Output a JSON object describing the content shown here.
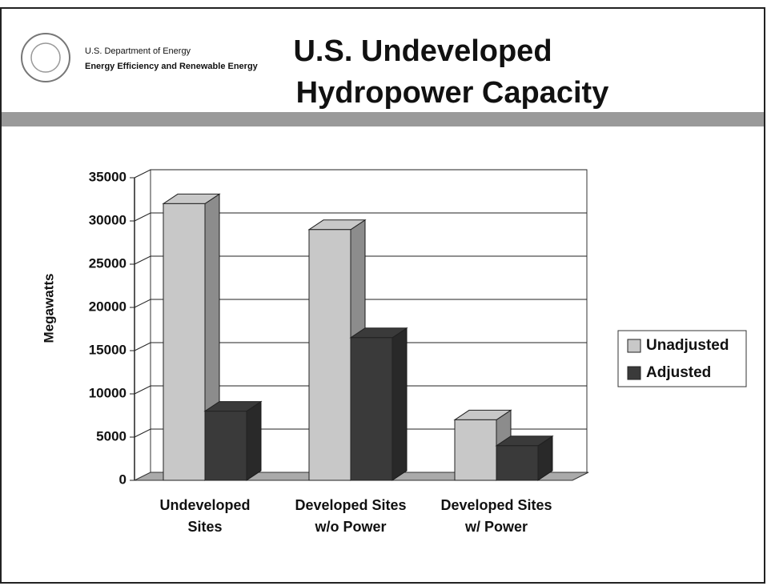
{
  "header": {
    "org": "U.S. Department of Energy",
    "division": "Energy Efficiency and Renewable Energy",
    "title_lines": [
      "U.S. Undeveloped",
      "Hydropower Capacity"
    ]
  },
  "chart_data": {
    "type": "bar3d",
    "y_label": "Megawatts",
    "categories": [
      [
        "Undeveloped",
        "Sites"
      ],
      [
        "Developed Sites",
        "w/o Power"
      ],
      [
        "Developed Sites",
        "w/ Power"
      ]
    ],
    "series": [
      {
        "name": "Unadjusted",
        "color": "#c8c8c8",
        "values": [
          32000,
          29000,
          7000
        ]
      },
      {
        "name": "Adjusted",
        "color": "#3a3a3a",
        "values": [
          8000,
          16500,
          4000
        ]
      }
    ],
    "ylim": [
      0,
      35000
    ],
    "yticks": [
      0,
      5000,
      10000,
      15000,
      20000,
      25000,
      30000,
      35000
    ],
    "grid": true,
    "legend": "right"
  }
}
